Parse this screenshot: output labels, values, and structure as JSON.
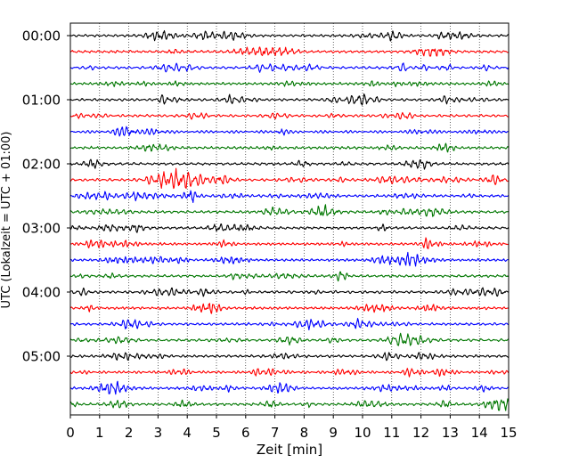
{
  "chart_data": {
    "type": "line",
    "chart_kind": "seismogram helicorder",
    "xlabel": "Zeit  [min]",
    "ylabel": "UTC (Lokalzeit = UTC + 01:00)",
    "xlim": [
      0,
      15
    ],
    "x_ticks": [
      "0",
      "1",
      "2",
      "3",
      "4",
      "5",
      "6",
      "7",
      "8",
      "9",
      "10",
      "11",
      "12",
      "13",
      "14",
      "15"
    ],
    "y_tick_labels": [
      "00:00",
      "01:00",
      "02:00",
      "03:00",
      "04:00",
      "05:00"
    ],
    "trace_interval_minutes": 15,
    "trace_count": 24,
    "trace_colors": [
      "#000000",
      "#ff0000",
      "#0000ff",
      "#007700"
    ],
    "grid": "vertical dotted lines at each minute",
    "notable_event": {
      "trace_start": "02:15",
      "x_start": 1.5,
      "x_end": 6.0,
      "peak_x": 3.8
    }
  }
}
